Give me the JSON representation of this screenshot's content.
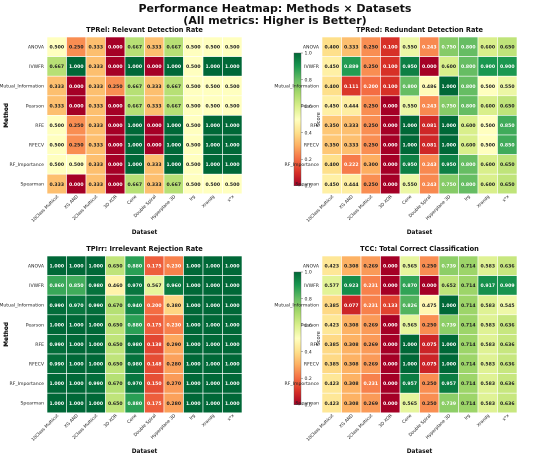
{
  "figure": {
    "title_line1": "Performance Heatmap: Methods × Datasets",
    "title_line2": "(All metrics: Higher is Better)"
  },
  "chart_data": [
    {
      "type": "heatmap",
      "title": "TPRel: Relevant Detection Rate",
      "xlabel": "Dataset",
      "ylabel": "Method",
      "colorbar_label": "Score",
      "vmin": 0.0,
      "vmax": 1.0,
      "colorbar_ticks": [
        "0.0",
        "0.2",
        "0.4",
        "0.6",
        "0.8",
        "1.0"
      ],
      "rows": [
        "ANOVA",
        "IVWFR",
        "Mutual_Information",
        "Pearson",
        "RFE",
        "RFECV",
        "RF_Importance",
        "Spearman"
      ],
      "columns": [
        "10Class Multicut",
        "XG AND",
        "2Class Multicut",
        "3D XOR",
        "Cone",
        "Double Spiral",
        "Hyperplane 3D",
        "Irg",
        "Xrandg",
        "x*x"
      ],
      "values": [
        [
          0.5,
          0.25,
          0.333,
          0.0,
          0.667,
          0.333,
          0.667,
          0.5,
          0.5,
          0.5
        ],
        [
          0.667,
          1.0,
          0.333,
          0.0,
          1.0,
          0.0,
          1.0,
          0.5,
          1.0,
          1.0
        ],
        [
          0.333,
          0.0,
          0.333,
          0.25,
          0.667,
          0.333,
          0.667,
          0.5,
          0.5,
          0.5
        ],
        [
          0.333,
          0.0,
          0.333,
          0.0,
          0.667,
          0.333,
          0.667,
          0.5,
          0.5,
          0.5
        ],
        [
          0.5,
          0.25,
          0.333,
          0.0,
          1.0,
          0.0,
          1.0,
          0.5,
          1.0,
          1.0
        ],
        [
          0.5,
          0.25,
          0.333,
          0.0,
          1.0,
          0.0,
          1.0,
          0.5,
          1.0,
          1.0
        ],
        [
          0.5,
          0.5,
          0.333,
          0.0,
          1.0,
          0.333,
          1.0,
          0.5,
          1.0,
          1.0
        ],
        [
          0.333,
          0.0,
          0.333,
          0.0,
          0.667,
          0.333,
          0.667,
          0.5,
          0.5,
          0.5
        ]
      ]
    },
    {
      "type": "heatmap",
      "title": "TPRed: Redundant Detection Rate",
      "xlabel": "Dataset",
      "ylabel": "Method",
      "colorbar_label": "Score",
      "vmin": 0.0,
      "vmax": 1.0,
      "colorbar_ticks": [
        "0.0",
        "0.2",
        "0.4",
        "0.6",
        "0.8",
        "1.0"
      ],
      "rows": [
        "ANOVA",
        "IVWFR",
        "Mutual_Information",
        "Pearson",
        "RFE",
        "RFECV",
        "RF_Importance",
        "Spearman"
      ],
      "columns": [
        "10Class Multicut",
        "XG AND",
        "2Class Multicut",
        "3D XOR",
        "Cone",
        "Double Spiral",
        "Hyperplane 3D",
        "Irg",
        "Xrandg",
        "x*x"
      ],
      "values": [
        [
          0.4,
          0.333,
          0.25,
          0.1,
          0.55,
          0.243,
          0.75,
          0.8,
          0.6,
          0.65
        ],
        [
          0.45,
          0.889,
          0.25,
          0.1,
          0.95,
          0.0,
          0.6,
          0.8,
          0.9,
          0.9
        ],
        [
          0.4,
          0.111,
          0.2,
          0.1,
          0.8,
          0.486,
          1.0,
          0.8,
          0.5,
          0.55
        ],
        [
          0.45,
          0.444,
          0.25,
          0.0,
          0.55,
          0.243,
          0.75,
          0.8,
          0.6,
          0.65
        ],
        [
          0.35,
          0.333,
          0.25,
          0.0,
          1.0,
          0.081,
          1.0,
          0.6,
          0.5,
          0.85
        ],
        [
          0.35,
          0.333,
          0.25,
          0.0,
          1.0,
          0.081,
          1.0,
          0.6,
          0.5,
          0.85
        ],
        [
          0.4,
          0.222,
          0.3,
          0.0,
          0.95,
          0.243,
          0.95,
          0.8,
          0.6,
          0.65
        ],
        [
          0.45,
          0.444,
          0.25,
          0.0,
          0.55,
          0.243,
          0.75,
          0.8,
          0.6,
          0.65
        ]
      ]
    },
    {
      "type": "heatmap",
      "title": "TPIrr: Irrelevant Rejection Rate",
      "xlabel": "Dataset",
      "ylabel": "Method",
      "colorbar_label": "Score",
      "vmin": 0.0,
      "vmax": 1.0,
      "colorbar_ticks": [
        "0.0",
        "0.2",
        "0.4",
        "0.6",
        "0.8",
        "1.0"
      ],
      "rows": [
        "ANOVA",
        "IVWFR",
        "Mutual_Information",
        "Pearson",
        "RFE",
        "RFECV",
        "RF_Importance",
        "Spearman"
      ],
      "columns": [
        "10Class Multicut",
        "XG AND",
        "2Class Multicut",
        "3D XOR",
        "Cone",
        "Double Spiral",
        "Hyperplane 3D",
        "Irg",
        "Xrandg",
        "x*x"
      ],
      "values": [
        [
          1.0,
          1.0,
          1.0,
          0.65,
          0.88,
          0.175,
          0.23,
          1.0,
          1.0,
          1.0
        ],
        [
          0.86,
          0.85,
          0.98,
          0.46,
          0.97,
          0.567,
          0.96,
          1.0,
          1.0,
          1.0
        ],
        [
          0.99,
          0.97,
          0.99,
          0.67,
          0.94,
          0.2,
          0.38,
          1.0,
          1.0,
          1.0
        ],
        [
          1.0,
          1.0,
          1.0,
          0.65,
          0.88,
          0.175,
          0.23,
          1.0,
          1.0,
          1.0
        ],
        [
          0.99,
          1.0,
          1.0,
          0.65,
          0.98,
          0.138,
          0.29,
          1.0,
          1.0,
          1.0
        ],
        [
          0.99,
          1.0,
          1.0,
          0.65,
          0.98,
          0.148,
          0.28,
          1.0,
          1.0,
          1.0
        ],
        [
          1.0,
          1.0,
          0.99,
          0.67,
          0.97,
          0.15,
          0.27,
          1.0,
          1.0,
          1.0
        ],
        [
          1.0,
          1.0,
          1.0,
          0.65,
          0.88,
          0.175,
          0.28,
          1.0,
          1.0,
          1.0
        ]
      ]
    },
    {
      "type": "heatmap",
      "title": "TCC: Total Correct Classification",
      "xlabel": "Dataset",
      "ylabel": "Method",
      "colorbar_label": "Score",
      "vmin": 0.0,
      "vmax": 1.0,
      "colorbar_ticks": [
        "0.0",
        "0.2",
        "0.4",
        "0.6",
        "0.8",
        "1.0"
      ],
      "rows": [
        "ANOVA",
        "IVWFR",
        "Mutual_Information",
        "Pearson",
        "RFE",
        "RFECV",
        "RF_Importance",
        "Spearman"
      ],
      "columns": [
        "10Class Multicut",
        "XG AND",
        "2Class Multicut",
        "3D XOR",
        "Cone",
        "Double Spiral",
        "Hyperplane 3D",
        "Irg",
        "Xrandg",
        "x*x"
      ],
      "values": [
        [
          0.423,
          0.308,
          0.269,
          0.0,
          0.565,
          0.25,
          0.739,
          0.714,
          0.583,
          0.636
        ],
        [
          0.577,
          0.923,
          0.231,
          0.0,
          0.87,
          0.0,
          0.652,
          0.714,
          0.917,
          0.909
        ],
        [
          0.385,
          0.077,
          0.231,
          0.133,
          0.826,
          0.475,
          1.0,
          0.714,
          0.583,
          0.545
        ],
        [
          0.423,
          0.308,
          0.269,
          0.0,
          0.565,
          0.25,
          0.739,
          0.714,
          0.583,
          0.636
        ],
        [
          0.385,
          0.308,
          0.269,
          0.0,
          1.0,
          0.075,
          1.0,
          0.714,
          0.583,
          0.636
        ],
        [
          0.385,
          0.308,
          0.269,
          0.0,
          1.0,
          0.075,
          1.0,
          0.714,
          0.583,
          0.636
        ],
        [
          0.423,
          0.308,
          0.231,
          0.0,
          0.957,
          0.25,
          0.957,
          0.714,
          0.583,
          0.636
        ],
        [
          0.423,
          0.308,
          0.269,
          0.0,
          0.565,
          0.25,
          0.739,
          0.714,
          0.583,
          0.636
        ]
      ]
    }
  ]
}
